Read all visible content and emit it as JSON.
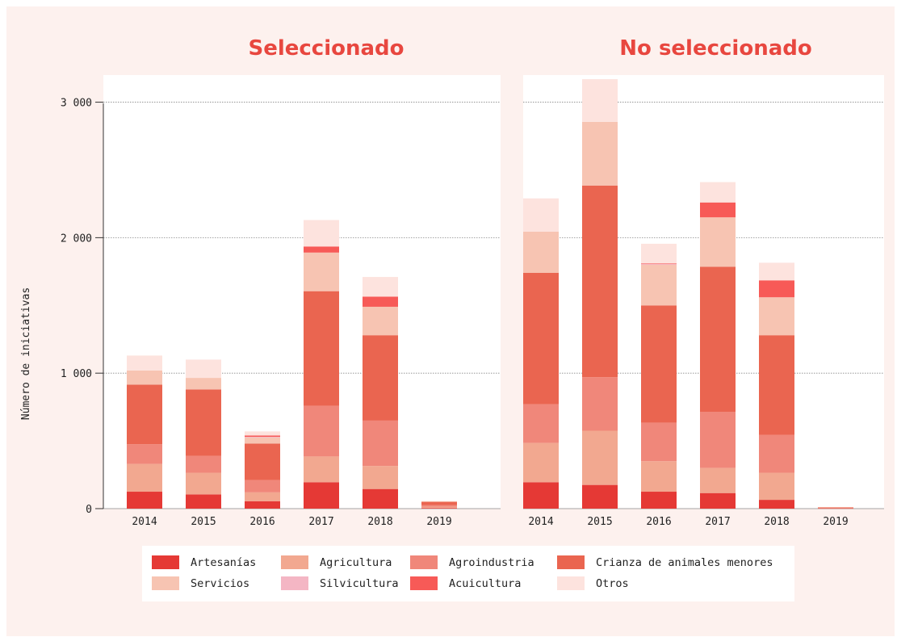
{
  "chart_data": {
    "type": "bar",
    "stacked": true,
    "ylabel": "Número de iniciativas",
    "ylim": [
      0,
      3200
    ],
    "yticks": [
      0,
      1000,
      2000,
      3000
    ],
    "ytick_labels": [
      "0",
      "1 000",
      "2 000",
      "3 000"
    ],
    "categories": [
      "2014",
      "2015",
      "2016",
      "2017",
      "2018",
      "2019"
    ],
    "grid": true,
    "legend_position": "bottom",
    "series_meta": [
      {
        "name": "Artesanías",
        "color": "#e53935"
      },
      {
        "name": "Agricultura",
        "color": "#f2a890"
      },
      {
        "name": "Agroindustria",
        "color": "#f0877a"
      },
      {
        "name": "Crianza de animales menores",
        "color": "#ea6550"
      },
      {
        "name": "Servicios",
        "color": "#f7c4b2"
      },
      {
        "name": "Silvicultura",
        "color": "#f4b6c4"
      },
      {
        "name": "Acuicultura",
        "color": "#f75a57"
      },
      {
        "name": "Otros",
        "color": "#fde3de"
      }
    ],
    "panels": [
      {
        "title": "Seleccionado",
        "series": [
          {
            "name": "Artesanías",
            "values": [
              125,
              105,
              55,
              195,
              145,
              5
            ]
          },
          {
            "name": "Agricultura",
            "values": [
              205,
              160,
              65,
              190,
              170,
              10
            ]
          },
          {
            "name": "Agroindustria",
            "values": [
              145,
              125,
              90,
              375,
              335,
              10
            ]
          },
          {
            "name": "Crianza de animales menores",
            "values": [
              440,
              490,
              270,
              845,
              630,
              25
            ]
          },
          {
            "name": "Servicios",
            "values": [
              105,
              85,
              45,
              285,
              210,
              5
            ]
          },
          {
            "name": "Silvicultura",
            "values": [
              0,
              0,
              5,
              0,
              0,
              0
            ]
          },
          {
            "name": "Acuicultura",
            "values": [
              0,
              0,
              10,
              45,
              75,
              0
            ]
          },
          {
            "name": "Otros",
            "values": [
              110,
              135,
              30,
              195,
              145,
              0
            ]
          }
        ]
      },
      {
        "title": "No seleccionado",
        "series": [
          {
            "name": "Artesanías",
            "values": [
              195,
              175,
              125,
              115,
              65,
              3
            ]
          },
          {
            "name": "Agricultura",
            "values": [
              290,
              400,
              225,
              185,
              200,
              3
            ]
          },
          {
            "name": "Agroindustria",
            "values": [
              285,
              395,
              285,
              415,
              280,
              2
            ]
          },
          {
            "name": "Crianza de animales menores",
            "values": [
              970,
              1415,
              865,
              1070,
              735,
              3
            ]
          },
          {
            "name": "Servicios",
            "values": [
              305,
              470,
              300,
              365,
              280,
              1
            ]
          },
          {
            "name": "Silvicultura",
            "values": [
              0,
              0,
              5,
              0,
              0,
              0
            ]
          },
          {
            "name": "Acuicultura",
            "values": [
              0,
              0,
              5,
              110,
              125,
              0
            ]
          },
          {
            "name": "Otros",
            "values": [
              245,
              315,
              145,
              150,
              130,
              0
            ]
          }
        ]
      }
    ]
  }
}
